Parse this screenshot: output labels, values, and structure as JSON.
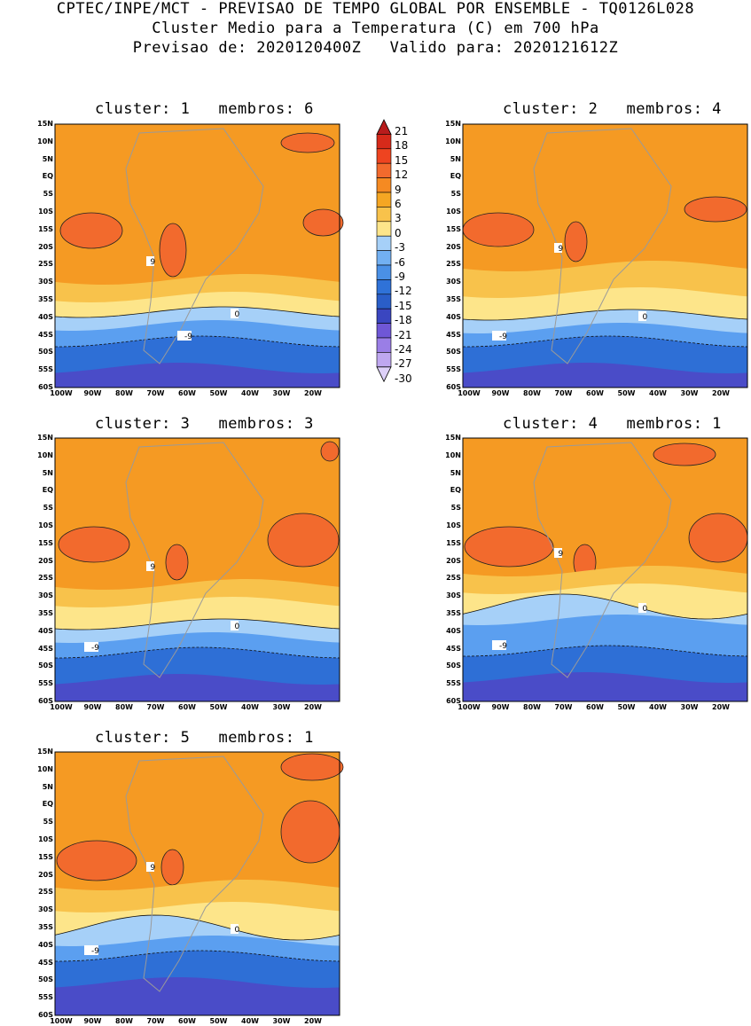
{
  "header": {
    "line1": "CPTEC/INPE/MCT - PREVISAO DE TEMPO GLOBAL POR ENSEMBLE - TQ0126L028",
    "line2": "Cluster Medio para a Temperatura (C) em 700 hPa",
    "line3": "Previsao de: 2020120400Z   Valido para: 2020121612Z"
  },
  "panels": [
    {
      "title": "cluster: 1   membros: 6"
    },
    {
      "title": "cluster: 2   membros: 4"
    },
    {
      "title": "cluster: 3   membros: 3"
    },
    {
      "title": "cluster: 4   membros: 1"
    },
    {
      "title": "cluster: 5   membros: 1"
    }
  ],
  "axes": {
    "lat_labels": [
      "15N",
      "10N",
      "5N",
      "EQ",
      "5S",
      "10S",
      "15S",
      "20S",
      "25S",
      "30S",
      "35S",
      "40S",
      "45S",
      "50S",
      "55S",
      "60S"
    ],
    "lon_labels": [
      "100W",
      "90W",
      "80W",
      "70W",
      "60W",
      "50W",
      "40W",
      "30W",
      "20W"
    ]
  },
  "colorbar": {
    "labels": [
      "21",
      "18",
      "15",
      "12",
      "9",
      "6",
      "3",
      "0",
      "-3",
      "-6",
      "-9",
      "-12",
      "-15",
      "-18",
      "-21",
      "-24",
      "-27",
      "-30"
    ],
    "colors": [
      "#b81c1c",
      "#d62a1a",
      "#ee4420",
      "#f26a2d",
      "#f58a22",
      "#f5a623",
      "#f8c24b",
      "#fde58a",
      "#a6d0f8",
      "#72b0f2",
      "#4a90e6",
      "#2f72d8",
      "#2a5ec8",
      "#3a46c0",
      "#6f57d6",
      "#9a7ee6",
      "#bfa7f0",
      "#ddd0f8"
    ]
  },
  "contour_labels": {
    "nine": "9",
    "zero": "0",
    "minus_nine": "-9"
  },
  "colors": {
    "warm": "#f59a23",
    "hot": "#f26a2d",
    "mild": "#f8c24b",
    "cool": "#fde58a",
    "cold1": "#a6d0f8",
    "cold2": "#5b9ff0",
    "cold3": "#2e6fd6",
    "cold4": "#4a4cc8"
  }
}
